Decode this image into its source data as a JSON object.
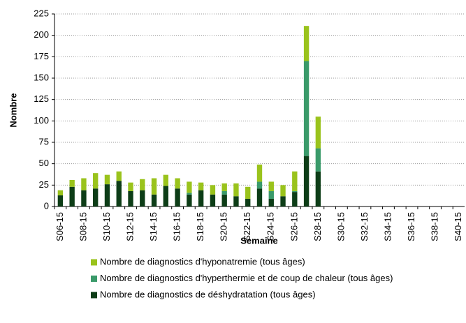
{
  "chart_data": {
    "type": "stacked-bar",
    "categories": [
      "S06-15",
      null,
      "S08-15",
      null,
      "S10-15",
      null,
      "S12-15",
      null,
      "S14-15",
      null,
      "S16-15",
      null,
      "S18-15",
      null,
      "S20-15",
      null,
      "S22-15",
      null,
      "S24-15",
      null,
      "S26-15",
      null,
      "S28-15",
      null,
      "S30-15",
      null,
      "S32-15",
      null,
      "S34-15",
      null,
      "S36-15",
      null,
      "S38-15",
      null,
      "S40-15"
    ],
    "series": [
      {
        "name": "Nombre de diagnostics d'hyponatremie (tous âges)",
        "color": "#9ac31c",
        "values": [
          6,
          8,
          14,
          18,
          11,
          11,
          10,
          13,
          19,
          13,
          12,
          13,
          9,
          11,
          9,
          15,
          14,
          20,
          11,
          13,
          23,
          41,
          37,
          null,
          null,
          null,
          null,
          null,
          null,
          null,
          null,
          null,
          null,
          null,
          null
        ]
      },
      {
        "name": "Nombre de diagnostics d'hyperthermie et de coup de chaleur (tous âges)",
        "color": "#3a9a6a",
        "values": [
          0,
          0,
          0,
          0,
          0,
          0,
          0,
          0,
          0,
          0,
          0,
          2,
          0,
          0,
          4,
          0,
          0,
          8,
          9,
          0,
          1,
          111,
          27,
          null,
          null,
          null,
          null,
          null,
          null,
          null,
          null,
          null,
          null,
          null,
          null
        ]
      },
      {
        "name": "Nombre de diagnostics de déshydratation (tous âges)",
        "color": "#0d3d17",
        "values": [
          13,
          23,
          19,
          21,
          26,
          30,
          18,
          19,
          14,
          24,
          21,
          14,
          19,
          14,
          14,
          12,
          9,
          21,
          9,
          12,
          17,
          59,
          41,
          null,
          null,
          null,
          null,
          null,
          null,
          null,
          null,
          null,
          null,
          null,
          null
        ]
      }
    ],
    "x_label": "Semaine",
    "y_label": "Nombre",
    "ylim": [
      0,
      225
    ],
    "yticks": [
      0,
      25,
      50,
      75,
      100,
      125,
      150,
      175,
      200,
      225
    ],
    "grid": true
  }
}
